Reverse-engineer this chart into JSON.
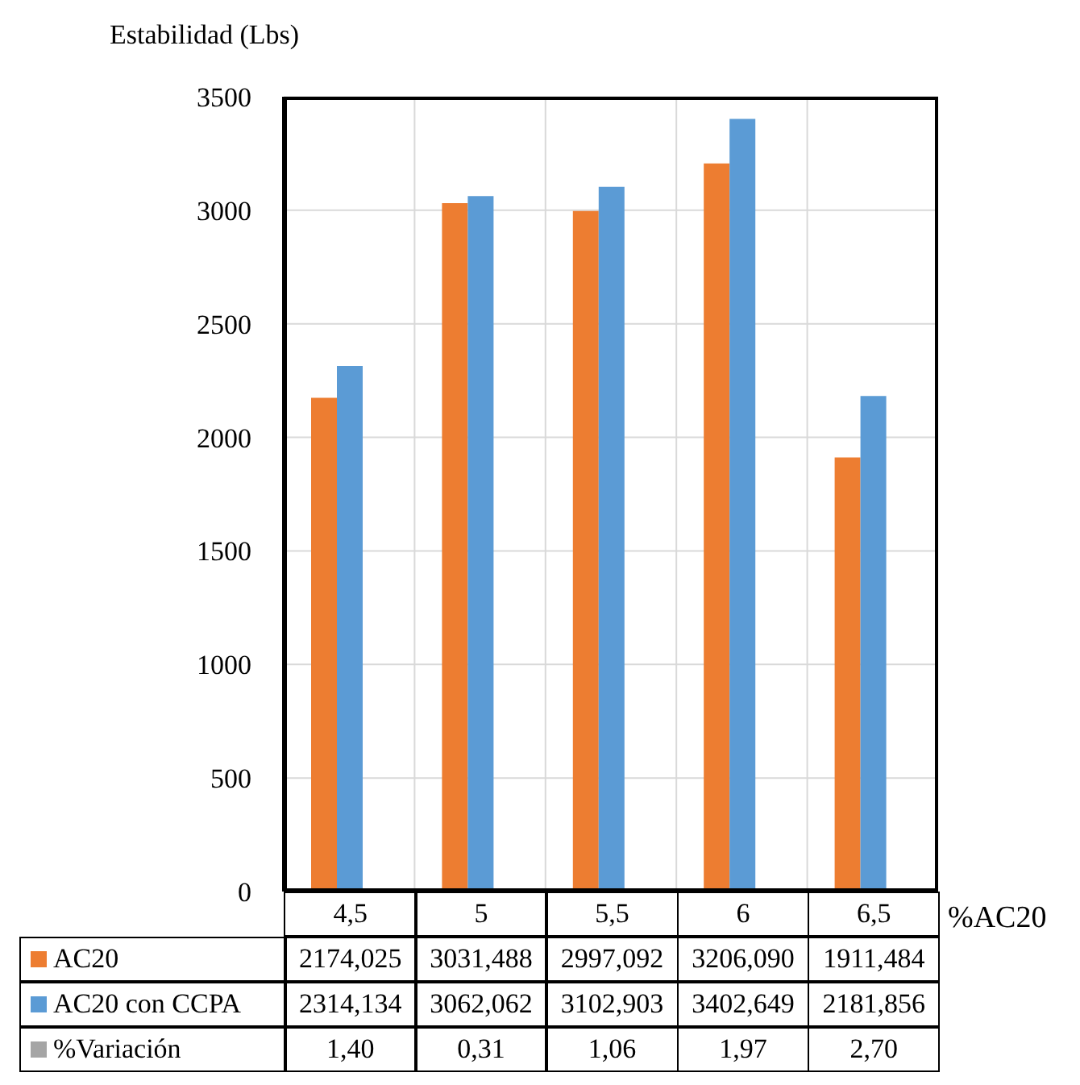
{
  "chart_data": {
    "type": "bar",
    "ylabel": "Estabilidad (Lbs)",
    "xlabel": "%AC20",
    "categories": [
      "4,5",
      "5",
      "5,5",
      "6",
      "6,5"
    ],
    "series": [
      {
        "name": "AC20",
        "color": "#ed7d31",
        "values": [
          2174.025,
          3031.488,
          2997.092,
          3206.09,
          1911.484
        ],
        "value_labels": [
          "2174,025",
          "3031,488",
          "2997,092",
          "3206,090",
          "1911,484"
        ]
      },
      {
        "name": "AC20 con CCPA",
        "color": "#5b9bd5",
        "values": [
          2314.134,
          3062.062,
          3102.903,
          3402.649,
          2181.856
        ],
        "value_labels": [
          "2314,134",
          "3062,062",
          "3102,903",
          "3402,649",
          "2181,856"
        ]
      },
      {
        "name": "%Variación",
        "color": "#a5a5a5",
        "values": [
          1.4,
          0.31,
          1.06,
          1.97,
          2.7
        ],
        "value_labels": [
          "1,40",
          "0,31",
          "1,06",
          "1,97",
          "2,70"
        ]
      }
    ],
    "ylim": [
      0,
      3500
    ],
    "yticks": [
      0,
      500,
      1000,
      1500,
      2000,
      2500,
      3000,
      3500
    ],
    "grid": true,
    "legend": "bottom"
  }
}
